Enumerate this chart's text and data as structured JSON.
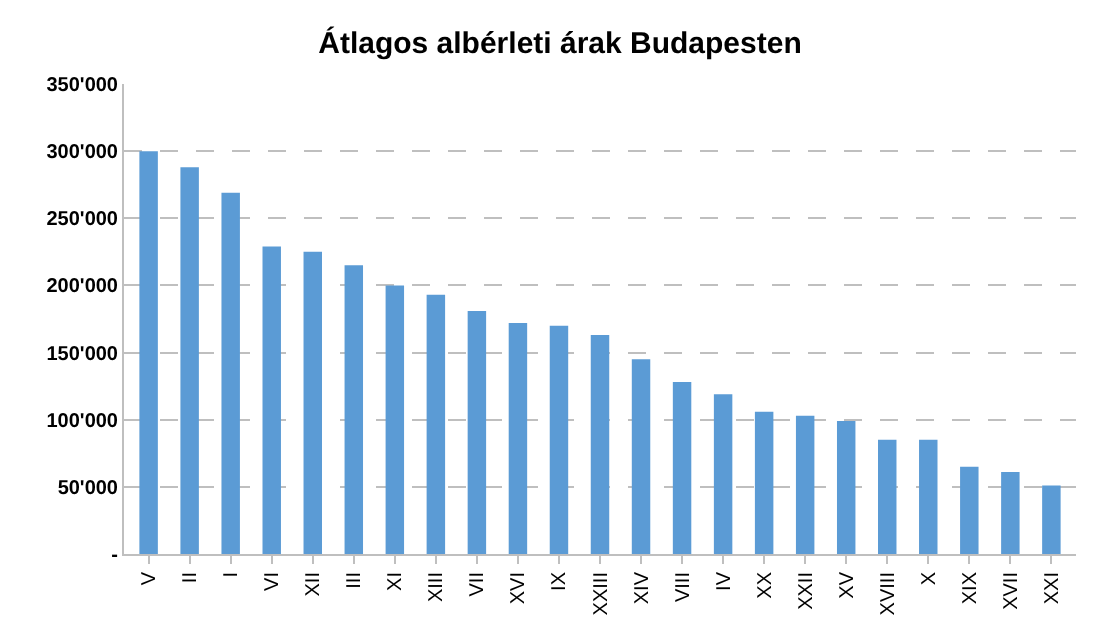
{
  "chart_data": {
    "type": "bar",
    "title": "Átlagos albérleti árak Budapesten",
    "categories": [
      "V",
      "II",
      "I",
      "VI",
      "XII",
      "III",
      "XI",
      "XIII",
      "VII",
      "XVI",
      "IX",
      "XXIII",
      "XIV",
      "VIII",
      "IV",
      "XX",
      "XXII",
      "XV",
      "XVIII",
      "X",
      "XIX",
      "XVII",
      "XXI"
    ],
    "values": [
      300000,
      288000,
      269000,
      229000,
      225000,
      215000,
      200000,
      193000,
      181000,
      172000,
      170000,
      163000,
      145000,
      128000,
      119000,
      106000,
      103000,
      99000,
      85000,
      85000,
      65000,
      61000,
      51000
    ],
    "color": "#5b9bd5",
    "ylim": [
      0,
      350000
    ],
    "yticks": [
      {
        "value": 0,
        "label": "-"
      },
      {
        "value": 50000,
        "label": "50'000"
      },
      {
        "value": 100000,
        "label": "100'000"
      },
      {
        "value": 150000,
        "label": "150'000"
      },
      {
        "value": 200000,
        "label": "200'000"
      },
      {
        "value": 250000,
        "label": "250'000"
      },
      {
        "value": 300000,
        "label": "300'000"
      },
      {
        "value": 350000,
        "label": "350'000"
      }
    ],
    "grid": "y"
  }
}
